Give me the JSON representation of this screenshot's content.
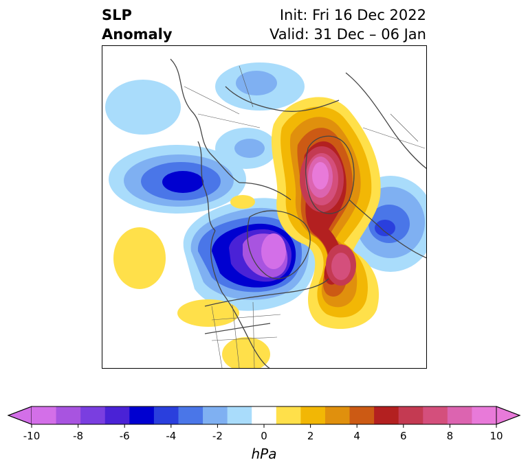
{
  "title": {
    "left_line1": "SLP",
    "left_line2": "Anomaly",
    "init": "Init: Fri 16 Dec 2022",
    "valid": "Valid: 31 Dec – 06 Jan"
  },
  "colorbar": {
    "unit": "hPa",
    "tick_labels": [
      "-10",
      "-8",
      "-6",
      "-4",
      "-2",
      "0",
      "2",
      "4",
      "6",
      "8",
      "10"
    ],
    "colors": [
      "#d36fe8",
      "#a854e0",
      "#7a3ee0",
      "#4a22d6",
      "#0000d0",
      "#2a3fdd",
      "#4a76e8",
      "#7fb0f2",
      "#a9dcfb",
      "#ffffff",
      "#ffe04a",
      "#f2b705",
      "#e0900d",
      "#cc5a14",
      "#b32020",
      "#c43a52",
      "#d44f7c",
      "#dc64b0",
      "#e87ad9"
    ],
    "under_color": "#d36fe8",
    "over_color": "#e87ad9"
  },
  "map": {
    "projection": "north-polar-stereographic",
    "field": "SLP anomaly"
  }
}
